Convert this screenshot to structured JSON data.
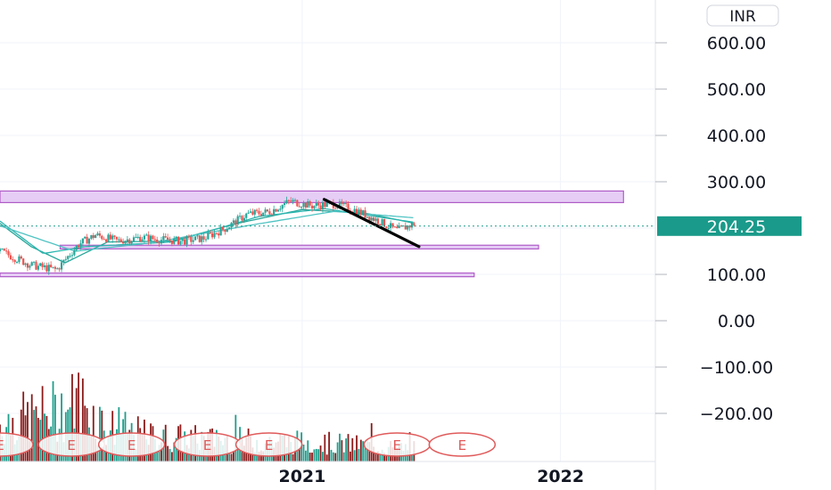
{
  "currency_label": "INR",
  "colors": {
    "up": "#26a69a",
    "down": "#ef5350",
    "volume_up": "#1e9e8c",
    "volume_down": "#8b1a1a",
    "zone_fill": "#e6cdf5",
    "zone_stroke": "#b05cc8",
    "price_badge": "#1a9a8a",
    "earnings": "#e05a5a",
    "ma": [
      "#26a69a",
      "#2bb6b0",
      "#4fc3c3"
    ]
  },
  "chart_data": {
    "type": "candlestick",
    "title": "",
    "xlabel": "",
    "ylabel": "",
    "y_ticks": [
      "600.00",
      "500.00",
      "400.00",
      "300.00",
      "100.00",
      "0.00",
      "−100.00",
      "−200.00"
    ],
    "y_tick_values": [
      600,
      500,
      400,
      300,
      100,
      0,
      -100,
      -200
    ],
    "ylim": [
      -260,
      680
    ],
    "x_ticks": [
      "2021",
      "2022"
    ],
    "x_tick_values": [
      "2021-01-01",
      "2022-01-01"
    ],
    "xlim": [
      "2019-11-01",
      "2022-05-15"
    ],
    "last_price": 204.25,
    "price_trend": [
      {
        "date": "2019-11-01",
        "value": 150
      },
      {
        "date": "2019-12-15",
        "value": 120
      },
      {
        "date": "2020-01-20",
        "value": 110
      },
      {
        "date": "2020-02-20",
        "value": 165
      },
      {
        "date": "2020-03-15",
        "value": 185
      },
      {
        "date": "2020-04-15",
        "value": 172
      },
      {
        "date": "2020-05-20",
        "value": 180
      },
      {
        "date": "2020-06-15",
        "value": 175
      },
      {
        "date": "2020-07-15",
        "value": 172
      },
      {
        "date": "2020-08-15",
        "value": 178
      },
      {
        "date": "2020-09-15",
        "value": 200
      },
      {
        "date": "2020-10-15",
        "value": 230
      },
      {
        "date": "2020-11-15",
        "value": 235
      },
      {
        "date": "2020-12-15",
        "value": 258
      },
      {
        "date": "2021-01-15",
        "value": 248
      },
      {
        "date": "2021-02-15",
        "value": 252
      },
      {
        "date": "2021-03-15",
        "value": 240
      },
      {
        "date": "2021-04-15",
        "value": 218
      },
      {
        "date": "2021-05-15",
        "value": 195
      },
      {
        "date": "2021-06-10",
        "value": 210
      }
    ],
    "volume_trend": [
      {
        "date": "2019-11-01",
        "value": 60
      },
      {
        "date": "2020-02-01",
        "value": 85
      },
      {
        "date": "2020-02-20",
        "value": 100
      },
      {
        "date": "2020-04-01",
        "value": 55
      },
      {
        "date": "2020-06-01",
        "value": 40
      },
      {
        "date": "2020-09-01",
        "value": 35
      },
      {
        "date": "2020-12-01",
        "value": 32
      },
      {
        "date": "2021-03-01",
        "value": 28
      },
      {
        "date": "2021-06-10",
        "value": 20
      }
    ],
    "moving_averages": [
      {
        "points": [
          {
            "date": "2019-11-01",
            "value": 210
          },
          {
            "date": "2019-12-15",
            "value": 160
          },
          {
            "date": "2020-02-01",
            "value": 125
          },
          {
            "date": "2020-04-01",
            "value": 170
          },
          {
            "date": "2020-07-01",
            "value": 172
          },
          {
            "date": "2020-10-01",
            "value": 210
          },
          {
            "date": "2021-01-01",
            "value": 240
          },
          {
            "date": "2021-04-01",
            "value": 232
          },
          {
            "date": "2021-06-10",
            "value": 210
          }
        ]
      },
      {
        "points": [
          {
            "date": "2019-11-01",
            "value": 215
          },
          {
            "date": "2020-01-01",
            "value": 145
          },
          {
            "date": "2020-03-01",
            "value": 160
          },
          {
            "date": "2020-07-01",
            "value": 170
          },
          {
            "date": "2020-11-01",
            "value": 225
          },
          {
            "date": "2021-02-01",
            "value": 242
          },
          {
            "date": "2021-06-10",
            "value": 212
          }
        ]
      },
      {
        "points": [
          {
            "date": "2019-11-01",
            "value": 205
          },
          {
            "date": "2020-02-15",
            "value": 150
          },
          {
            "date": "2020-06-01",
            "value": 168
          },
          {
            "date": "2020-10-15",
            "value": 205
          },
          {
            "date": "2021-02-15",
            "value": 236
          },
          {
            "date": "2021-06-10",
            "value": 222
          }
        ]
      }
    ],
    "zones": [
      {
        "start": "2019-11-01",
        "end": "2022-03-31",
        "low": 255,
        "high": 280
      },
      {
        "start": "2020-01-25",
        "end": "2021-12-01",
        "low": 155,
        "high": 163
      },
      {
        "start": "2019-11-01",
        "end": "2021-09-01",
        "low": 95,
        "high": 103
      }
    ],
    "trendline": {
      "start": {
        "date": "2021-02-01",
        "value": 262
      },
      "end": {
        "date": "2021-06-15",
        "value": 160
      }
    },
    "earnings": [
      {
        "date": "2019-11-01",
        "label": "E"
      },
      {
        "date": "2020-02-10",
        "label": "E"
      },
      {
        "date": "2020-05-05",
        "label": "E"
      },
      {
        "date": "2020-08-20",
        "label": "E"
      },
      {
        "date": "2020-11-15",
        "label": "E"
      },
      {
        "date": "2021-05-15",
        "label": "E"
      },
      {
        "date": "2021-08-15",
        "label": "E"
      }
    ]
  }
}
